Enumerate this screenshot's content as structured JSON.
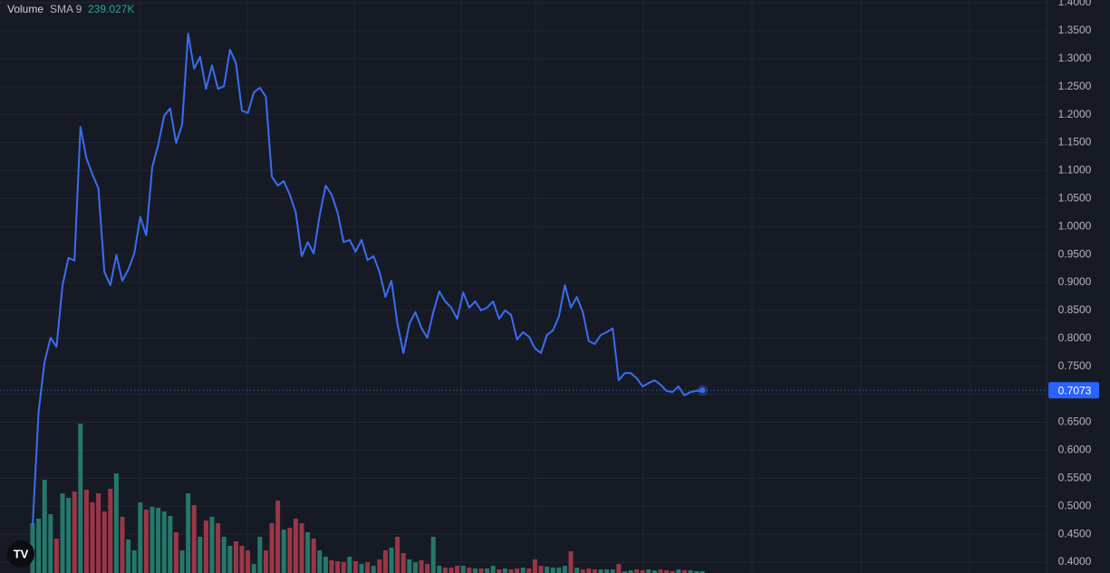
{
  "chart_data": {
    "type": "line",
    "price": {
      "color": "#3a6df0",
      "values": [
        0.466,
        0.669,
        0.758,
        0.801,
        0.785,
        0.895,
        0.944,
        0.939,
        1.178,
        1.122,
        1.093,
        1.068,
        0.919,
        0.895,
        0.949,
        0.903,
        0.923,
        0.952,
        1.017,
        0.984,
        1.106,
        1.146,
        1.198,
        1.211,
        1.149,
        1.182,
        1.345,
        1.282,
        1.303,
        1.246,
        1.288,
        1.246,
        1.251,
        1.316,
        1.292,
        1.207,
        1.203,
        1.24,
        1.248,
        1.232,
        1.089,
        1.073,
        1.081,
        1.057,
        1.025,
        0.947,
        0.972,
        0.952,
        1.02,
        1.073,
        1.057,
        1.025,
        0.972,
        0.976,
        0.955,
        0.976,
        0.94,
        0.947,
        0.919,
        0.874,
        0.903,
        0.826,
        0.774,
        0.826,
        0.847,
        0.819,
        0.801,
        0.847,
        0.884,
        0.866,
        0.855,
        0.835,
        0.882,
        0.855,
        0.866,
        0.85,
        0.855,
        0.866,
        0.835,
        0.85,
        0.842,
        0.798,
        0.811,
        0.803,
        0.782,
        0.774,
        0.806,
        0.814,
        0.839,
        0.895,
        0.855,
        0.874,
        0.847,
        0.795,
        0.79,
        0.806,
        0.811,
        0.818,
        0.725,
        0.738,
        0.738,
        0.729,
        0.714,
        0.72,
        0.725,
        0.717,
        0.706,
        0.704,
        0.714,
        0.698,
        0.704,
        0.706,
        0.7073
      ]
    },
    "volume": {
      "name": "Volume",
      "indicator": "SMA 9",
      "indicator_value": "239.027K",
      "up_color": "#25786a",
      "down_color": "#9c3647",
      "ylim": [
        0,
        9000
      ],
      "values": [
        2750,
        3000,
        5150,
        3250,
        1900,
        4400,
        4150,
        4500,
        8250,
        4600,
        3900,
        4400,
        3400,
        4650,
        5500,
        3100,
        1850,
        1250,
        3900,
        3500,
        3650,
        3600,
        3400,
        3150,
        2250,
        1250,
        4400,
        3750,
        2000,
        2900,
        3100,
        2750,
        2000,
        1500,
        1750,
        1500,
        1250,
        500,
        2000,
        1250,
        2750,
        4000,
        2400,
        2500,
        3000,
        2750,
        2250,
        1900,
        1250,
        900,
        700,
        650,
        600,
        900,
        650,
        500,
        600,
        400,
        750,
        1250,
        1400,
        2000,
        1100,
        750,
        600,
        700,
        500,
        2000,
        400,
        300,
        300,
        400,
        400,
        300,
        250,
        250,
        250,
        400,
        200,
        250,
        200,
        250,
        300,
        250,
        750,
        400,
        350,
        300,
        300,
        400,
        1200,
        300,
        200,
        250,
        200,
        200,
        200,
        200,
        500,
        100,
        150,
        200,
        150,
        200,
        150,
        200,
        150,
        100,
        200,
        150,
        150,
        100,
        100
      ]
    },
    "ylim": [
      0.4,
      1.4
    ],
    "yticks": [
      {
        "value": 0.4,
        "label": "0.4000"
      },
      {
        "value": 0.45,
        "label": "0.4500"
      },
      {
        "value": 0.5,
        "label": "0.5000"
      },
      {
        "value": 0.55,
        "label": "0.5500"
      },
      {
        "value": 0.6,
        "label": "0.6000"
      },
      {
        "value": 0.65,
        "label": "0.6500"
      },
      {
        "value": 0.7,
        "label": "0.7000"
      },
      {
        "value": 0.75,
        "label": "0.7500"
      },
      {
        "value": 0.8,
        "label": "0.8000"
      },
      {
        "value": 0.85,
        "label": "0.8500"
      },
      {
        "value": 0.9,
        "label": "0.9000"
      },
      {
        "value": 0.95,
        "label": "0.9500"
      },
      {
        "value": 1.0,
        "label": "1.0000"
      },
      {
        "value": 1.05,
        "label": "1.0500"
      },
      {
        "value": 1.1,
        "label": "1.1000"
      },
      {
        "value": 1.15,
        "label": "1.1500"
      },
      {
        "value": 1.2,
        "label": "1.2000"
      },
      {
        "value": 1.25,
        "label": "1.2500"
      },
      {
        "value": 1.3,
        "label": "1.3000"
      },
      {
        "value": 1.35,
        "label": "1.3500"
      },
      {
        "value": 1.4,
        "label": "1.4000"
      }
    ],
    "grid": true
  }
}
